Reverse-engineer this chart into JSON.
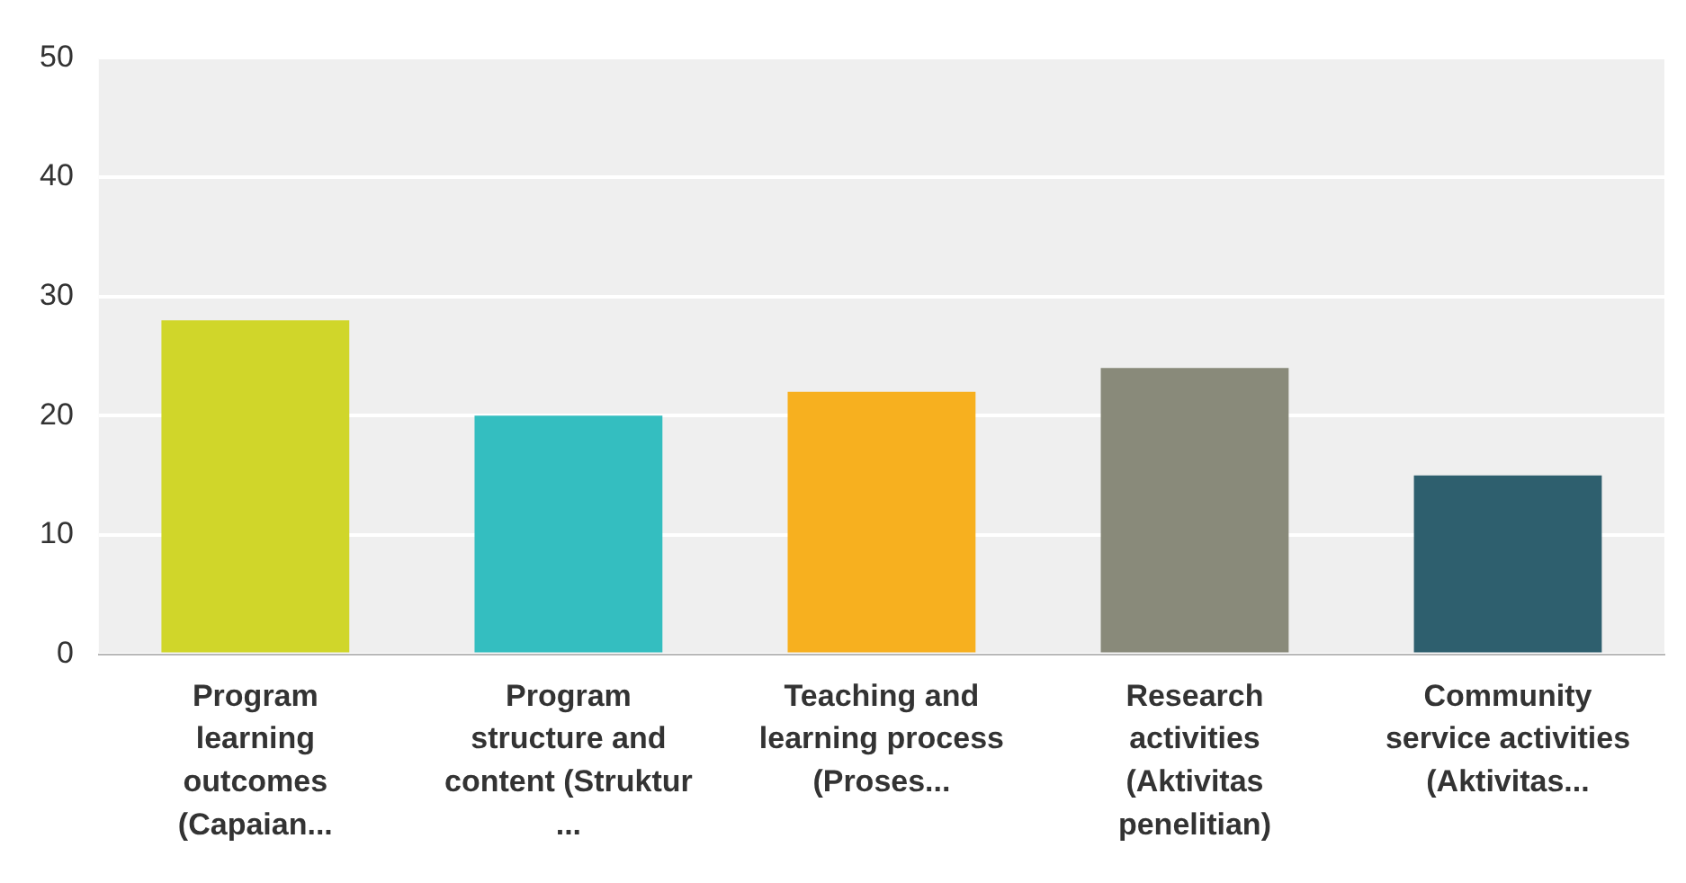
{
  "chart_data": {
    "type": "bar",
    "categories": [
      "Program learning outcomes (Capaian...",
      "Program structure and content (Struktur ...",
      "Teaching and learning process (Proses...",
      "Research activities (Aktivitas penelitian)",
      "Community service activities (Aktivitas..."
    ],
    "values": [
      28,
      20,
      22,
      24,
      15
    ],
    "colors": [
      "#d0d62a",
      "#34bec0",
      "#f7b01f",
      "#898a7a",
      "#2e5f6e"
    ],
    "ylim": [
      0,
      50
    ],
    "yticks": [
      0,
      10,
      20,
      30,
      40,
      50
    ],
    "grid": "y",
    "legend": false
  }
}
